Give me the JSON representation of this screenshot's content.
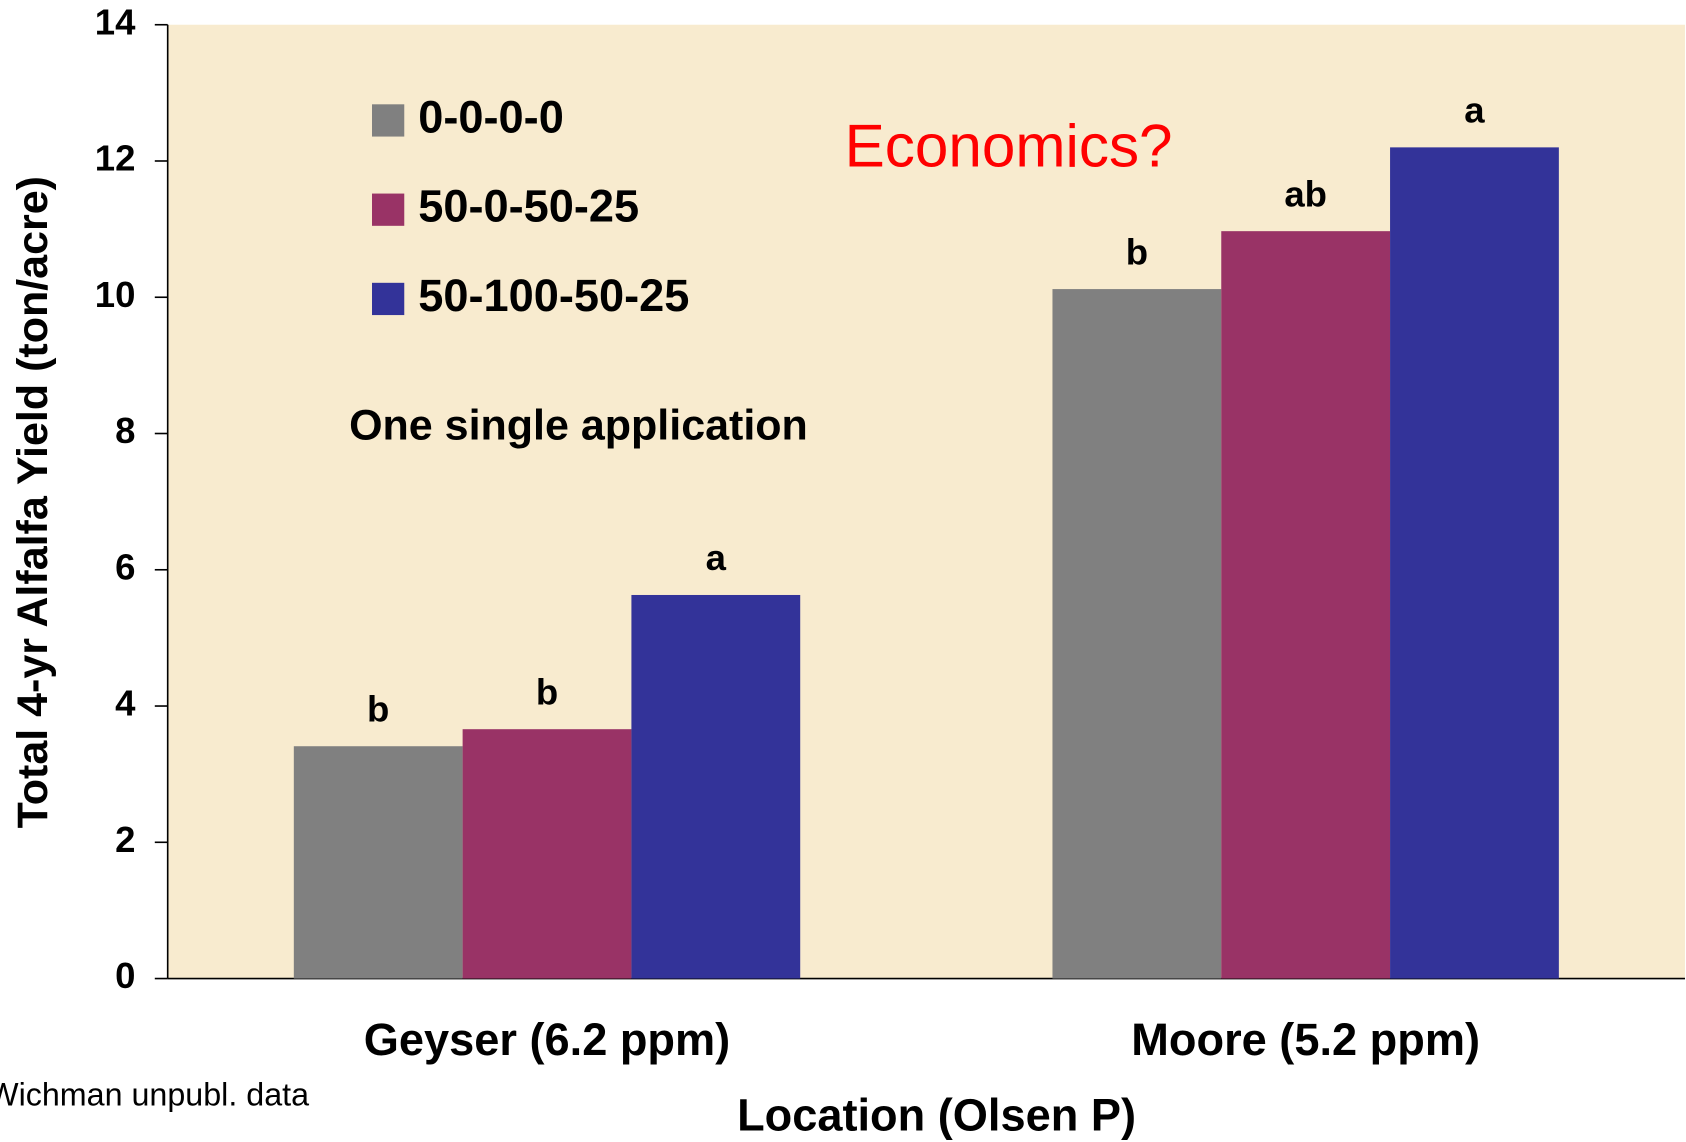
{
  "chart_data": {
    "type": "bar",
    "categories": [
      "Geyser (6.2 ppm)",
      "Moore (5.2 ppm)"
    ],
    "series": [
      {
        "name": "0-0-0-0",
        "color": "#808080",
        "values": [
          3.41,
          10.12
        ],
        "letters": [
          "b",
          "b"
        ]
      },
      {
        "name": "50-0-50-25",
        "color": "#993366",
        "values": [
          3.66,
          10.97
        ],
        "letters": [
          "b",
          "ab"
        ]
      },
      {
        "name": "50-100-50-25",
        "color": "#333399",
        "values": [
          5.63,
          12.2
        ],
        "letters": [
          "a",
          "a"
        ]
      }
    ],
    "ylim": [
      0,
      14
    ],
    "yticks": [
      0,
      2,
      4,
      6,
      8,
      10,
      12,
      14
    ],
    "y_label": "Total 4-yr Alfalfa Yield (ton/acre)",
    "x_label": "Location (Olsen P)",
    "annotations": [
      "Economics?",
      "One single application"
    ],
    "source": "Wichman unpubl. data",
    "legend": "upper left",
    "background": "#f8ebcf"
  }
}
